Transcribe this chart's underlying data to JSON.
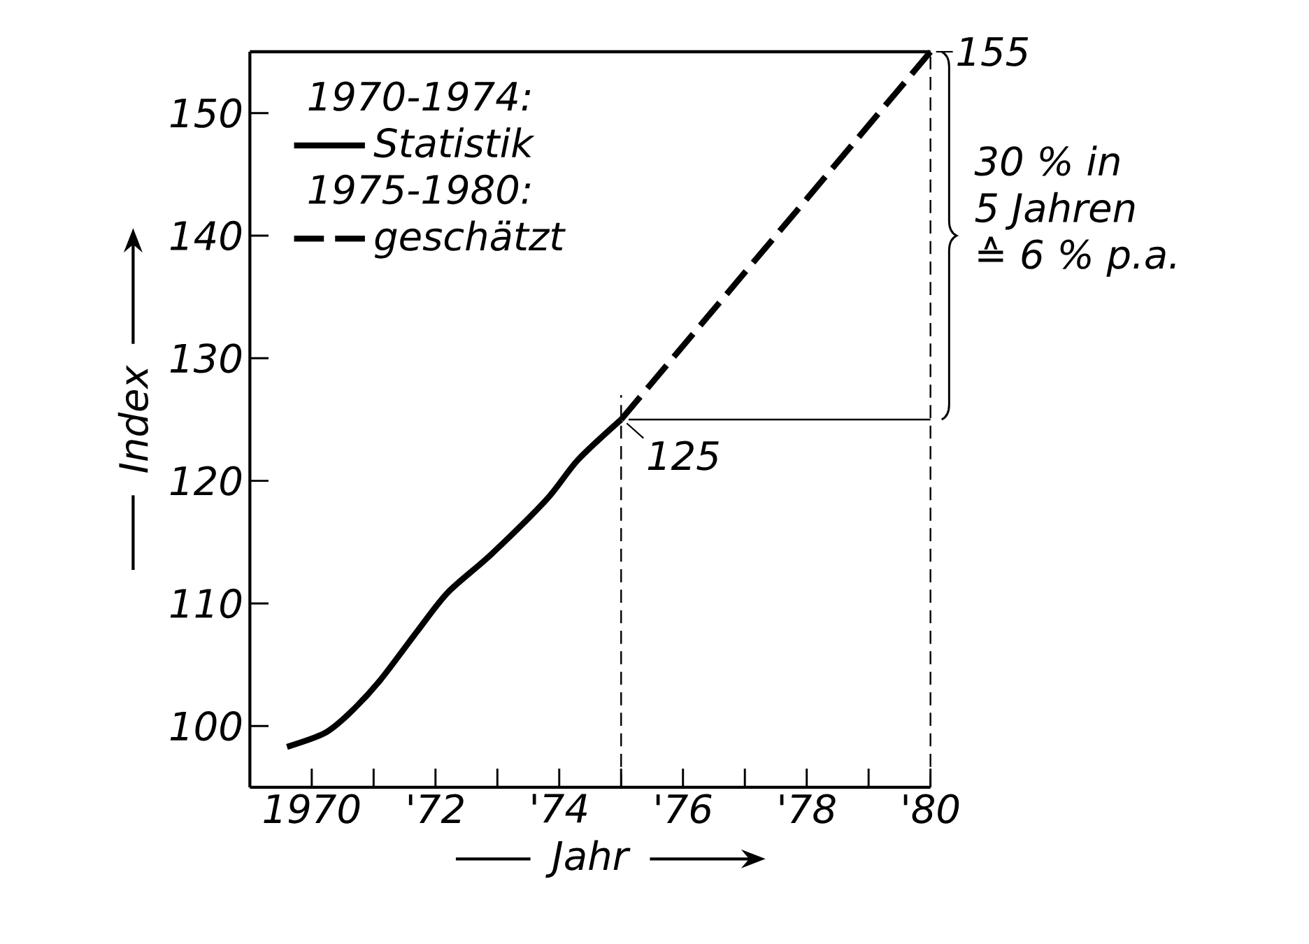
{
  "chart_data": {
    "type": "line",
    "xlabel": "Jahr",
    "ylabel": "Index",
    "xlim": [
      1969,
      1980
    ],
    "ylim": [
      95,
      155
    ],
    "xticks": [
      {
        "value": 1970,
        "label": "1970"
      },
      {
        "value": 1971,
        "label": null
      },
      {
        "value": 1972,
        "label": "'72"
      },
      {
        "value": 1973,
        "label": null
      },
      {
        "value": 1974,
        "label": "'74"
      },
      {
        "value": 1975,
        "label": null
      },
      {
        "value": 1976,
        "label": "'76"
      },
      {
        "value": 1977,
        "label": null
      },
      {
        "value": 1978,
        "label": "'78"
      },
      {
        "value": 1979,
        "label": null
      },
      {
        "value": 1980,
        "label": "'80"
      }
    ],
    "yticks": [
      100,
      110,
      120,
      130,
      140,
      150
    ],
    "series": [
      {
        "name": "Statistik",
        "color": "#000000",
        "line_style": "solid",
        "x": [
          1969.6,
          1970.2,
          1970.6,
          1971.1,
          1971.7,
          1972.2,
          1972.9,
          1973.8,
          1974.3,
          1975
        ],
        "values": [
          98.3,
          99.4,
          101.0,
          103.7,
          107.7,
          110.9,
          114.0,
          118.5,
          121.7,
          125
        ]
      },
      {
        "name": "geschätzt",
        "color": "#000000",
        "line_style": "dashed",
        "x": [
          1975,
          1980
        ],
        "values": [
          125,
          155
        ]
      }
    ],
    "ref_lines": [
      {
        "axis": "x",
        "value": 1975,
        "line_style": "dashed"
      },
      {
        "axis": "x",
        "value": 1980,
        "line_style": "dashed"
      }
    ],
    "annotations": [
      "1970-1974:",
      "1975-1980:",
      {
        "text": "125",
        "x": 1975,
        "y": 125
      },
      {
        "text": "155",
        "x": 1980,
        "y": 155
      },
      "30 % in",
      "5 Jahren",
      "≙ 6 % p.a."
    ],
    "legend": "top left",
    "grid": false
  }
}
